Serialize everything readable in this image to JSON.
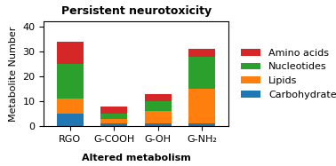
{
  "chart_data": {
    "type": "bar",
    "title": "Persistent neurotoxicity",
    "subtitle": "Altered metabolism",
    "categories": [
      "RGO",
      "G-COOH",
      "G-OH",
      "G-NH₂"
    ],
    "series": [
      {
        "name": "Carbohydrates",
        "values": [
          5,
          1,
          1,
          1
        ]
      },
      {
        "name": "Lipids",
        "values": [
          6,
          2,
          5,
          14
        ]
      },
      {
        "name": "Nucleotides",
        "values": [
          14,
          2,
          4,
          13
        ]
      },
      {
        "name": "Amino acids",
        "values": [
          9,
          3,
          3,
          3
        ]
      }
    ],
    "stacked": true,
    "ylabel": "Metabolite Number",
    "ylim": [
      0,
      42
    ],
    "yticks": [
      0,
      10,
      20,
      30,
      40
    ],
    "legend": "right"
  }
}
